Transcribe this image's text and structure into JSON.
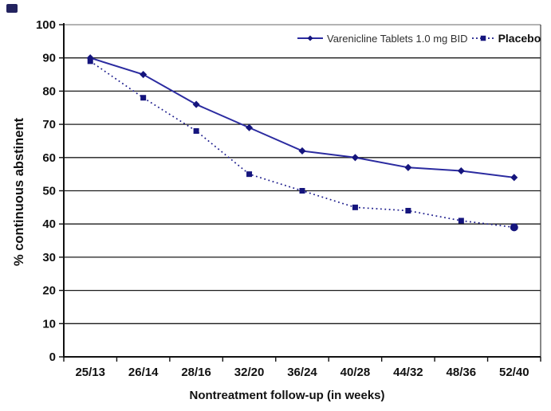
{
  "chart_data": {
    "type": "line",
    "title": "",
    "xlabel": "Nontreatment follow-up (in weeks)",
    "ylabel": "% continuous abstinent",
    "categories": [
      "25/13",
      "26/14",
      "28/16",
      "32/20",
      "36/24",
      "40/28",
      "44/32",
      "48/36",
      "52/40"
    ],
    "series": [
      {
        "name": "Varenicline Tablets 1.0 mg BID",
        "values": [
          90,
          85,
          76,
          69,
          62,
          60,
          57,
          56,
          54
        ],
        "line_style": "solid",
        "marker": "diamond",
        "color": "#2b2ba0",
        "marker_color": "#15157d"
      },
      {
        "name": "Placebo",
        "values": [
          89,
          78,
          68,
          55,
          50,
          45,
          44,
          41,
          39
        ],
        "line_style": "dotted",
        "marker": "square",
        "last_marker": "circle",
        "color": "#1c1c8c",
        "marker_color": "#15157d"
      }
    ],
    "ylim": [
      0,
      100
    ],
    "yticks": [
      0,
      10,
      20,
      30,
      40,
      50,
      60,
      70,
      80,
      90,
      100
    ],
    "grid": "horizontal",
    "legend_position": "top-right-inside",
    "axis_color": "#111111",
    "gridline_color": "#1b1b1b",
    "top_border_color": "#9a9a9a"
  }
}
